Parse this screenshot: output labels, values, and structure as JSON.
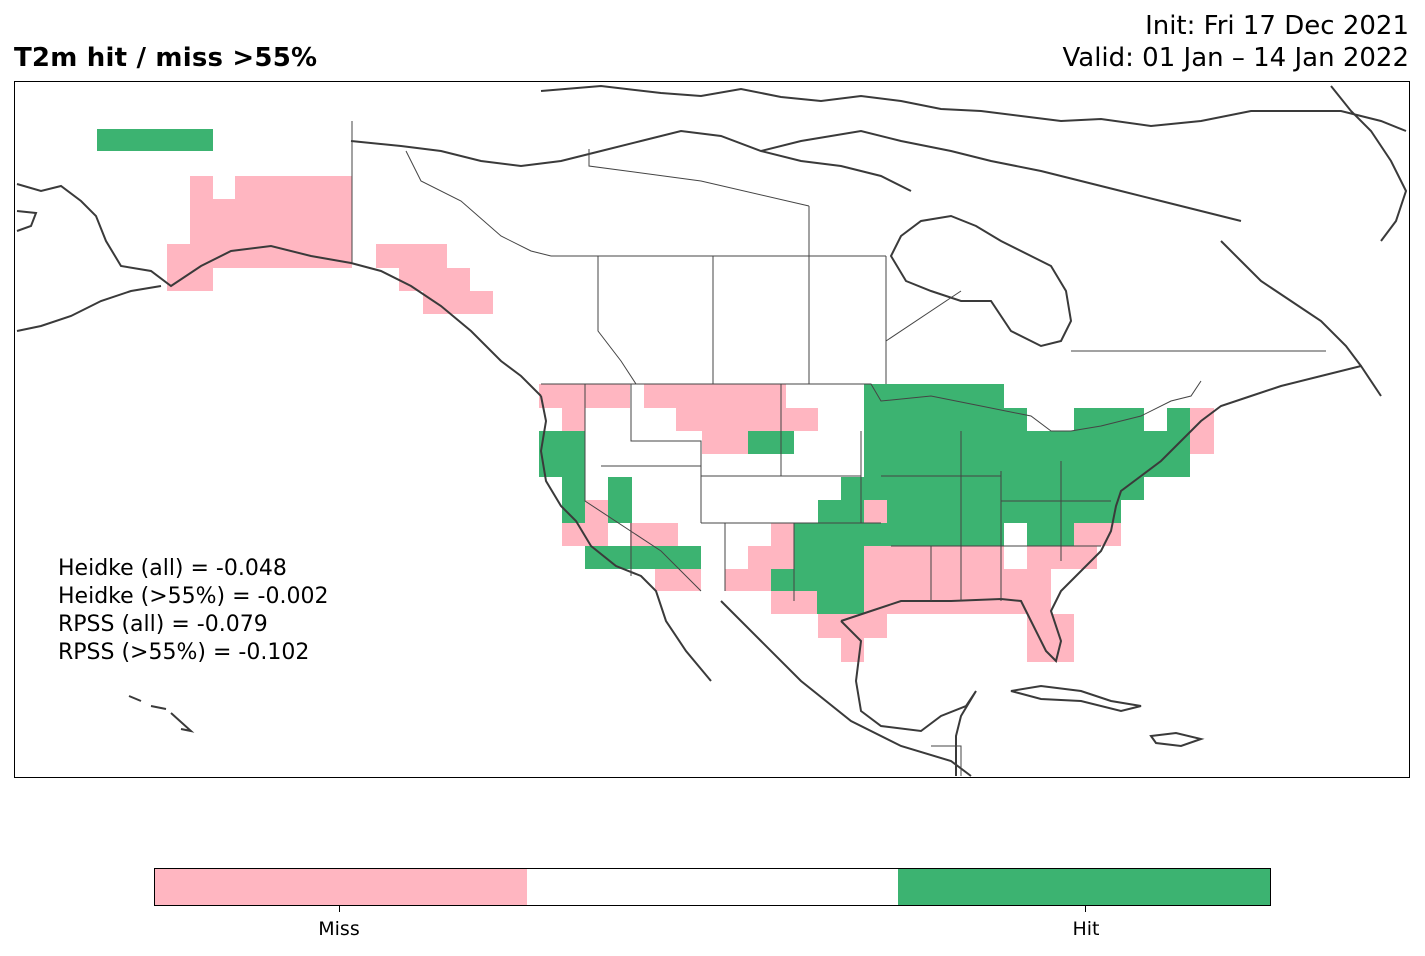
{
  "title": {
    "left": "T2m hit / miss  >55%",
    "init": "Init: Fri 17 Dec 2021",
    "valid": "Valid: 01 Jan – 14 Jan 2022"
  },
  "stats": [
    "Heidke (all) = -0.048",
    "Heidke (>55%) = -0.002",
    "RPSS (all) = -0.079",
    "RPSS (>55%) = -0.102"
  ],
  "colors": {
    "miss": "#ffb6c1",
    "neutral": "#ffffff",
    "hit": "#3cb371",
    "coast": "#3a3a3a",
    "border": "#444444"
  },
  "colorbar": {
    "labels": [
      "Miss",
      "",
      "Hit"
    ],
    "colors": [
      "#ffb6c1",
      "#ffffff",
      "#3cb371"
    ]
  },
  "map": {
    "region": "North America",
    "cell_categories": [
      "hit",
      "miss"
    ]
  }
}
